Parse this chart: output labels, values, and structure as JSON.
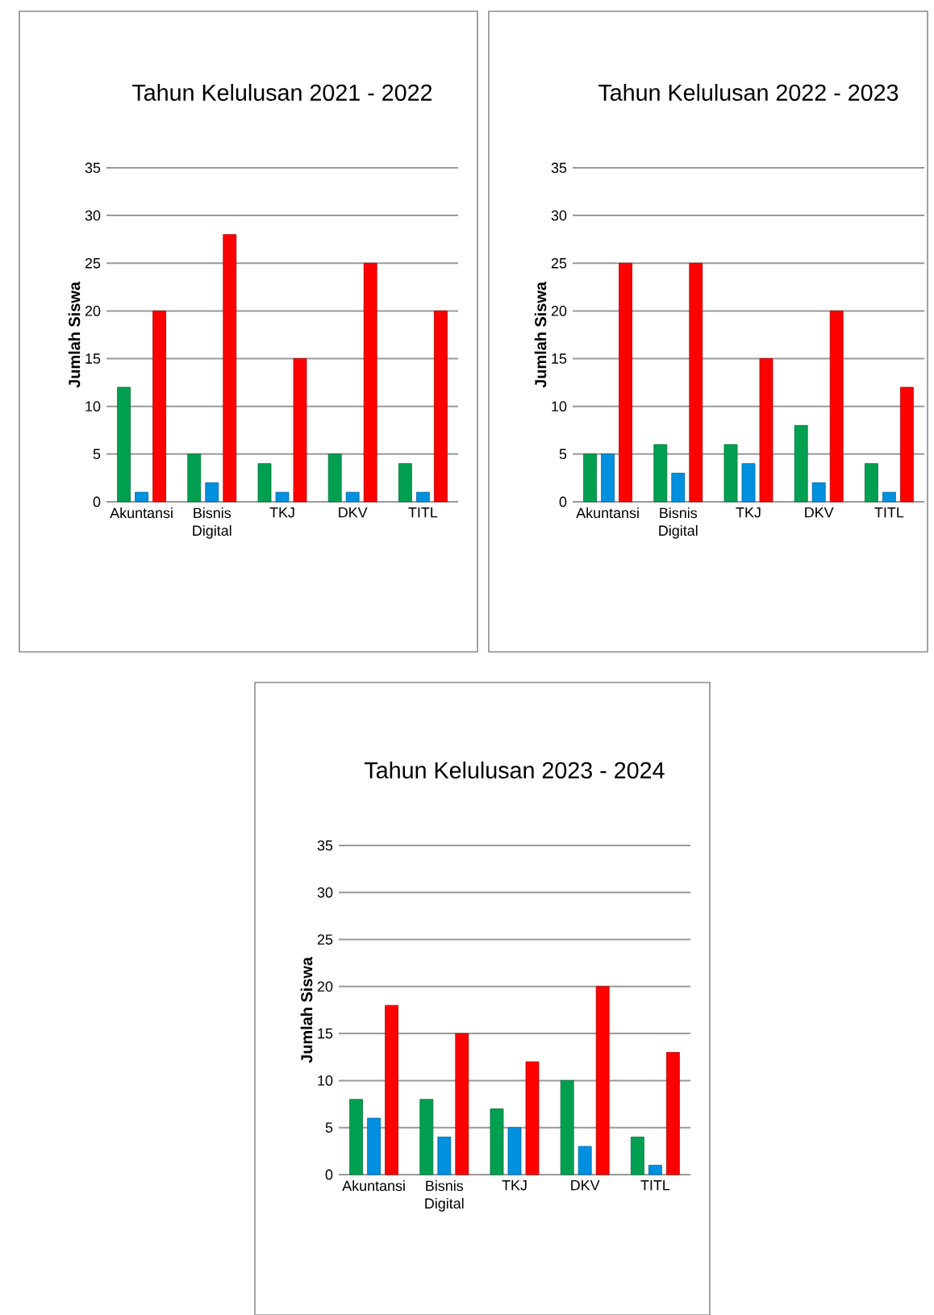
{
  "chart_data": [
    {
      "type": "bar",
      "title": "Tahun Kelulusan 2021 - 2022",
      "ylabel": "Jumlah Siswa",
      "categories": [
        "Akuntansi",
        "Bisnis Digital",
        "TKJ",
        "DKV",
        "TITL"
      ],
      "series": [
        {
          "color": "#00a050",
          "values": [
            12,
            5,
            4,
            5,
            4
          ]
        },
        {
          "color": "#0090e0",
          "values": [
            1,
            2,
            1,
            1,
            1
          ]
        },
        {
          "color": "#ff0000",
          "values": [
            20,
            28,
            15,
            25,
            20
          ]
        }
      ],
      "ylim": [
        0,
        35
      ],
      "yticks": [
        0,
        5,
        10,
        15,
        20,
        25,
        30,
        35
      ],
      "grid": "y"
    },
    {
      "type": "bar",
      "title": "Tahun Kelulusan 2022 - 2023",
      "ylabel": "Jumlah Siswa",
      "categories": [
        "Akuntansi",
        "Bisnis Digital",
        "TKJ",
        "DKV",
        "TITL"
      ],
      "series": [
        {
          "color": "#00a050",
          "values": [
            5,
            6,
            6,
            8,
            4
          ]
        },
        {
          "color": "#0090e0",
          "values": [
            5,
            3,
            4,
            2,
            1
          ]
        },
        {
          "color": "#ff0000",
          "values": [
            25,
            25,
            15,
            20,
            12
          ]
        }
      ],
      "ylim": [
        0,
        35
      ],
      "yticks": [
        0,
        5,
        10,
        15,
        20,
        25,
        30,
        35
      ],
      "grid": "y"
    },
    {
      "type": "bar",
      "title": "Tahun Kelulusan 2023 - 2024",
      "ylabel": "Jumlah Siswa",
      "categories": [
        "Akuntansi",
        "Bisnis Digital",
        "TKJ",
        "DKV",
        "TITL"
      ],
      "series": [
        {
          "color": "#00a050",
          "values": [
            8,
            8,
            7,
            10,
            4
          ]
        },
        {
          "color": "#0090e0",
          "values": [
            6,
            4,
            5,
            3,
            1
          ]
        },
        {
          "color": "#ff0000",
          "values": [
            18,
            15,
            12,
            20,
            13
          ]
        }
      ],
      "ylim": [
        0,
        35
      ],
      "yticks": [
        0,
        5,
        10,
        15,
        20,
        25,
        30,
        35
      ],
      "grid": "y"
    }
  ]
}
